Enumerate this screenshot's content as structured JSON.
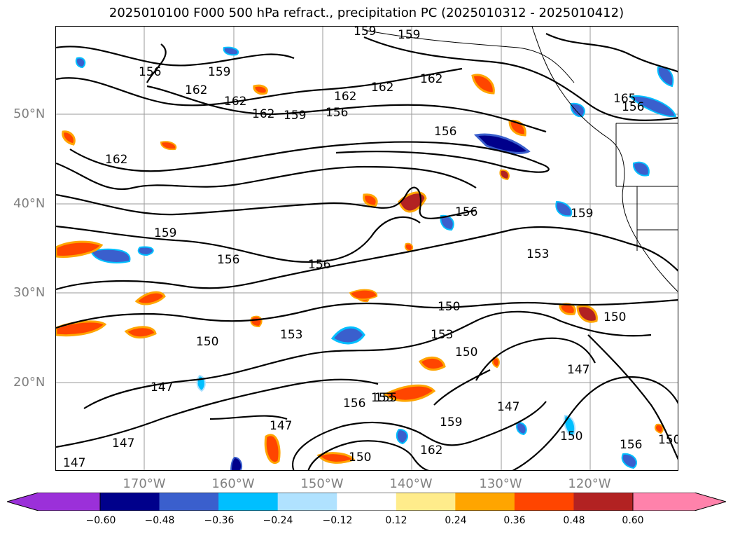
{
  "title": "2025010100 F000 500 hPa refract., precipitation PC (2025010312 - 2025010412)",
  "lat_labels": [
    "50°N",
    "40°N",
    "30°N",
    "20°N"
  ],
  "lon_labels": [
    "170°W",
    "160°W",
    "150°W",
    "140°W",
    "130°W",
    "120°W"
  ],
  "contour_labels": [
    "159",
    "159",
    "156",
    "162",
    "162",
    "162",
    "159",
    "156",
    "162",
    "162",
    "162",
    "165",
    "156",
    "162",
    "159",
    "156",
    "159",
    "153",
    "159",
    "156",
    "156",
    "150",
    "153",
    "150",
    "153",
    "150",
    "147",
    "147",
    "150",
    "156",
    "153",
    "159",
    "147",
    "147",
    "156",
    "147",
    "147",
    "150",
    "162",
    "150",
    "150",
    "156",
    "155"
  ],
  "colorbar": {
    "ticks": [
      "−0.60",
      "−0.48",
      "−0.36",
      "−0.24",
      "−0.12",
      "0.12",
      "0.24",
      "0.36",
      "0.48",
      "0.60"
    ],
    "colors": [
      "#9b30d9",
      "#00008b",
      "#3a5fcd",
      "#00bfff",
      "#b0e2ff",
      "#ffffff",
      "#ffec8b",
      "#ffa500",
      "#ff4500",
      "#b22222",
      "#ff82ab"
    ]
  }
}
